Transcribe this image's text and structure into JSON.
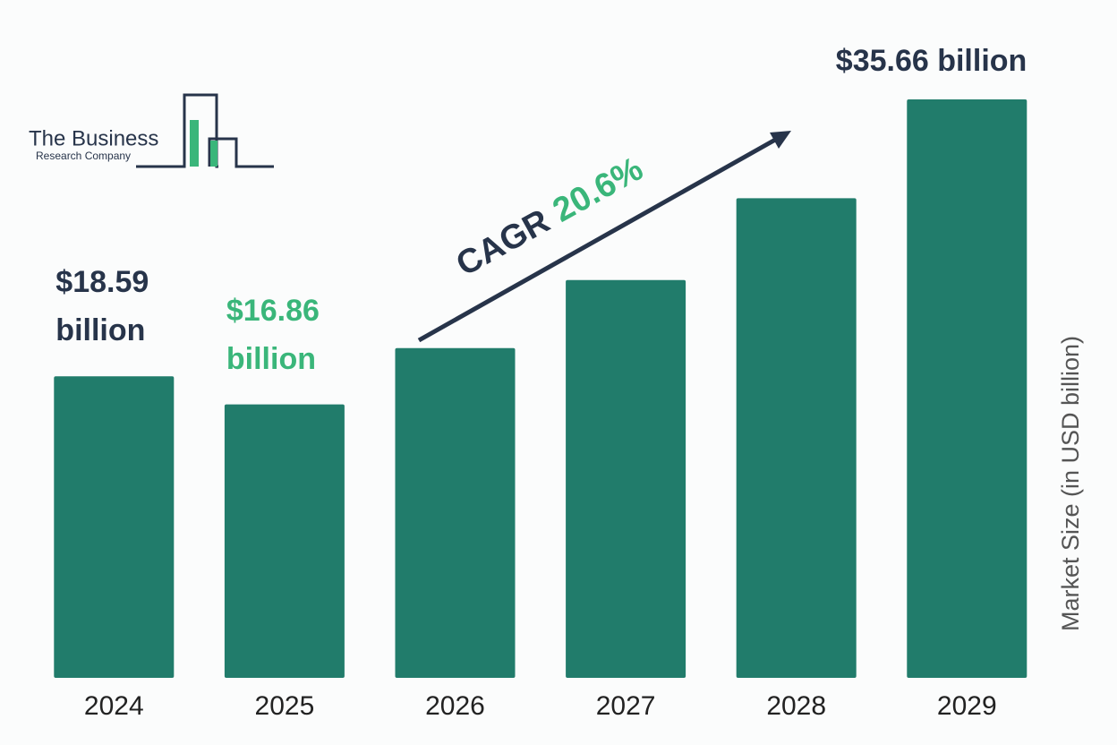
{
  "chart_data": {
    "type": "bar",
    "categories": [
      "2024",
      "2025",
      "2026",
      "2027",
      "2028",
      "2029"
    ],
    "values": [
      18.59,
      16.86,
      20.33,
      24.52,
      29.57,
      35.66
    ],
    "value_labels": [
      "$18.59 billion",
      "$16.86 billion",
      null,
      null,
      null,
      "$35.66 billion"
    ],
    "value_label_colors": [
      "#27344a",
      "#3ab67a",
      null,
      null,
      null,
      "#27344a"
    ],
    "color": "#217c6b",
    "y_axis_label": "Market Size (in USD billion)",
    "annotation": {
      "label": "CAGR",
      "value": "20.6%"
    },
    "logo": {
      "line1": "The Business",
      "line2": "Research Company"
    }
  }
}
